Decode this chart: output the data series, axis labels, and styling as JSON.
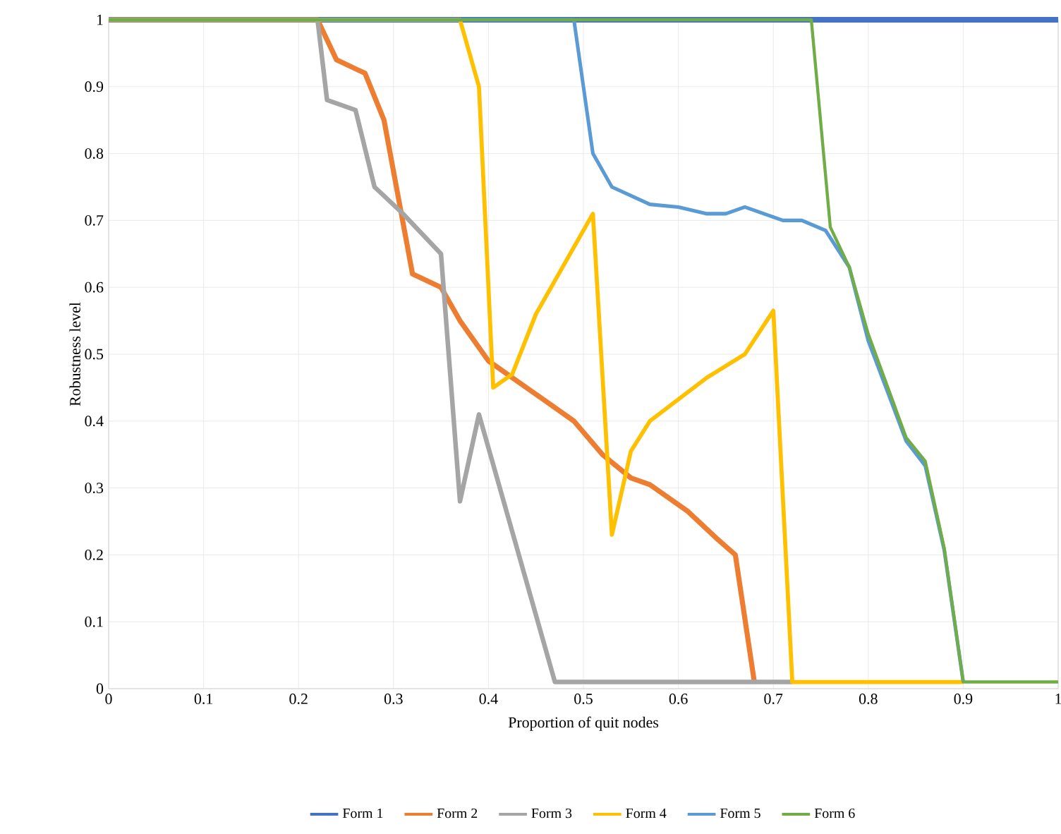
{
  "chart_data": {
    "type": "line",
    "xlabel": "Proportion of quit nodes",
    "ylabel": "Robustness level",
    "xlim": [
      0,
      1
    ],
    "ylim": [
      0,
      1
    ],
    "xticks": [
      0,
      0.1,
      0.2,
      0.3,
      0.4,
      0.5,
      0.6,
      0.7,
      0.8,
      0.9,
      1
    ],
    "yticks": [
      0,
      0.1,
      0.2,
      0.3,
      0.4,
      0.5,
      0.6,
      0.7,
      0.8,
      0.9,
      1
    ],
    "grid": true,
    "legend": "bottom",
    "marker": "none",
    "line_style": "solid",
    "series": [
      {
        "name": "Form 1",
        "color": "#4472c4",
        "x": [
          0,
          1
        ],
        "values": [
          1,
          1
        ]
      },
      {
        "name": "Form 2",
        "color": "#ed7d31",
        "x": [
          0,
          0.22,
          0.24,
          0.27,
          0.29,
          0.32,
          0.35,
          0.37,
          0.4,
          0.45,
          0.49,
          0.52,
          0.55,
          0.57,
          0.61,
          0.64,
          0.66,
          0.68
        ],
        "values": [
          1,
          1,
          0.94,
          0.92,
          0.85,
          0.62,
          0.6,
          0.55,
          0.49,
          0.44,
          0.4,
          0.35,
          0.315,
          0.305,
          0.265,
          0.225,
          0.2,
          0.01
        ]
      },
      {
        "name": "Form 3",
        "color": "#a5a5a5",
        "x": [
          0,
          0.22,
          0.23,
          0.26,
          0.28,
          0.31,
          0.35,
          0.37,
          0.39,
          0.47,
          0.72
        ],
        "values": [
          1,
          1,
          0.88,
          0.865,
          0.75,
          0.71,
          0.65,
          0.28,
          0.41,
          0.01,
          0.01
        ]
      },
      {
        "name": "Form 4",
        "color": "#ffc000",
        "x": [
          0,
          0.37,
          0.39,
          0.405,
          0.425,
          0.45,
          0.51,
          0.53,
          0.55,
          0.57,
          0.63,
          0.67,
          0.7,
          0.72,
          0.9
        ],
        "values": [
          1,
          1,
          0.9,
          0.45,
          0.47,
          0.56,
          0.71,
          0.23,
          0.355,
          0.4,
          0.465,
          0.5,
          0.565,
          0.01,
          0.01
        ]
      },
      {
        "name": "Form 5",
        "color": "#5b9bd5",
        "x": [
          0,
          0.49,
          0.51,
          0.53,
          0.57,
          0.6,
          0.63,
          0.65,
          0.67,
          0.71,
          0.73,
          0.755,
          0.78,
          0.8,
          0.84,
          0.86,
          0.88,
          0.9
        ],
        "values": [
          1,
          1,
          0.8,
          0.75,
          0.724,
          0.72,
          0.71,
          0.71,
          0.72,
          0.7,
          0.7,
          0.685,
          0.63,
          0.52,
          0.37,
          0.333,
          0.207,
          0.01
        ]
      },
      {
        "name": "Form 6",
        "color": "#70ad47",
        "x": [
          0,
          0.74,
          0.76,
          0.78,
          0.8,
          0.84,
          0.86,
          0.88,
          0.9,
          1
        ],
        "values": [
          1,
          1,
          0.69,
          0.63,
          0.53,
          0.375,
          0.34,
          0.21,
          0.01,
          0.01
        ]
      }
    ]
  }
}
